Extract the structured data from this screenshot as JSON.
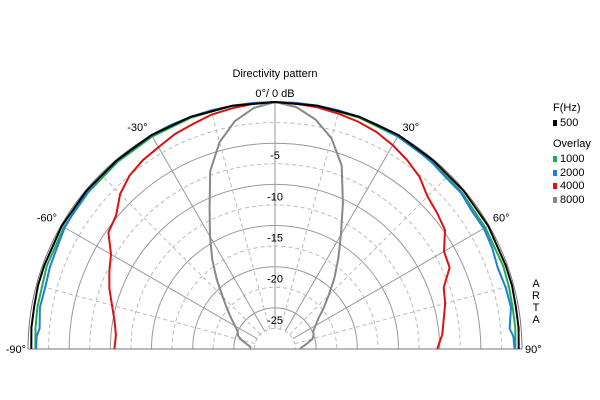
{
  "chart_data": {
    "type": "polar",
    "title": "Directivity pattern",
    "top_label": "0°/ 0 dB",
    "angle_range": [
      -90,
      90
    ],
    "radial_range_db": [
      -30,
      0
    ],
    "grid": true,
    "angle_tick_labels": [
      {
        "angle": -90,
        "label": "-90°"
      },
      {
        "angle": -60,
        "label": "-60°"
      },
      {
        "angle": -30,
        "label": "-30°"
      },
      {
        "angle": 30,
        "label": "30°"
      },
      {
        "angle": 60,
        "label": "60°"
      },
      {
        "angle": 90,
        "label": "90°"
      }
    ],
    "radial_tick_labels": [
      {
        "db": -5,
        "label": "-5"
      },
      {
        "db": -10,
        "label": "-10"
      },
      {
        "db": -15,
        "label": "-15"
      },
      {
        "db": -20,
        "label": "-20"
      },
      {
        "db": -25,
        "label": "-25"
      }
    ],
    "legend": {
      "header": "F(Hz)",
      "overlay_header": "Overlay",
      "watermark": "ARTA",
      "placement": "right"
    },
    "series": [
      {
        "name": "500",
        "color": "#000000",
        "angles": [
          -90,
          -85,
          -80,
          -75,
          -70,
          -60,
          -50,
          -40,
          -30,
          -20,
          -10,
          0,
          10,
          20,
          30,
          40,
          50,
          60,
          70,
          75,
          80,
          85,
          90
        ],
        "db": [
          -0.4,
          -0.3,
          -0.3,
          -0.2,
          -0.2,
          -0.1,
          -0.1,
          -0.1,
          0,
          0,
          0,
          0,
          0,
          0,
          0,
          -0.1,
          -0.1,
          -0.1,
          -0.2,
          -0.2,
          -0.3,
          -0.3,
          -0.4
        ]
      },
      {
        "name": "1000",
        "color": "#22aa55",
        "angles": [
          -90,
          -85,
          -80,
          -75,
          -70,
          -60,
          -50,
          -40,
          -30,
          -20,
          -10,
          0,
          10,
          20,
          30,
          40,
          50,
          60,
          70,
          75,
          80,
          85,
          90
        ],
        "db": [
          -0.9,
          -0.8,
          -0.7,
          -0.7,
          -0.5,
          -0.4,
          -0.4,
          -0.3,
          -0.2,
          -0.1,
          0,
          0,
          0,
          -0.1,
          -0.2,
          -0.3,
          -0.4,
          -0.5,
          -0.5,
          -0.6,
          -0.7,
          -0.7,
          -0.8
        ]
      },
      {
        "name": "2000",
        "color": "#1e7fd6",
        "angles": [
          -90,
          -87,
          -85,
          -80,
          -75,
          -70,
          -65,
          -60,
          -55,
          -50,
          -45,
          -40,
          -35,
          -30,
          -25,
          -20,
          -15,
          -10,
          -5,
          0,
          5,
          10,
          15,
          20,
          25,
          30,
          35,
          40,
          45,
          50,
          55,
          60,
          65,
          70,
          75,
          80,
          85,
          87,
          90
        ],
        "db": [
          -1.0,
          -1.0,
          -1.3,
          -1.0,
          -1.1,
          -0.9,
          -0.8,
          -0.5,
          -0.4,
          -0.3,
          -0.2,
          -0.2,
          -0.1,
          0,
          0,
          0,
          0,
          0,
          0,
          0,
          0,
          0,
          0,
          0,
          -0.1,
          -0.2,
          -0.3,
          -0.4,
          -0.6,
          -0.5,
          -0.8,
          -0.7,
          -0.9,
          -1.2,
          -1.0,
          -0.9,
          -1.4,
          -1.0,
          -0.9
        ]
      },
      {
        "name": "4000",
        "color": "#dd1111",
        "angles": [
          -90,
          -85,
          -80,
          -75,
          -70,
          -65,
          -60,
          -55,
          -50,
          -45,
          -40,
          -35,
          -30,
          -25,
          -20,
          -15,
          -10,
          -5,
          0,
          5,
          10,
          15,
          20,
          25,
          30,
          35,
          40,
          45,
          50,
          55,
          60,
          65,
          70,
          75,
          80,
          85,
          90
        ],
        "db": [
          -10.5,
          -10.6,
          -10.2,
          -9.5,
          -8.6,
          -7.8,
          -7.0,
          -5.3,
          -4.8,
          -3.4,
          -2.5,
          -2.0,
          -1.7,
          -1.2,
          -0.9,
          -0.5,
          -0.3,
          -0.1,
          0,
          -0.1,
          -0.2,
          -0.4,
          -0.6,
          -0.9,
          -1.4,
          -2.0,
          -2.7,
          -3.8,
          -4.3,
          -4.8,
          -6.3,
          -6.6,
          -8.2,
          -8.6,
          -9.2,
          -9.6,
          -10.3
        ]
      },
      {
        "name": "8000",
        "color": "#888888",
        "angles": [
          -90,
          -85,
          -80,
          -75,
          -70,
          -65,
          -60,
          -55,
          -50,
          -45,
          -40,
          -35,
          -30,
          -25,
          -20,
          -15,
          -10,
          -5,
          0,
          5,
          10,
          15,
          20,
          25,
          30,
          35,
          40,
          45,
          50,
          55,
          60,
          65,
          70,
          75,
          80,
          85,
          90
        ],
        "db": [
          -27.0,
          -27.0,
          -26.5,
          -25.8,
          -25.2,
          -25.0,
          -24.4,
          -23.5,
          -22.4,
          -21.0,
          -19.0,
          -16.7,
          -14.2,
          -11.2,
          -7.0,
          -4.0,
          -1.9,
          -0.6,
          0,
          -0.5,
          -1.7,
          -3.5,
          -6.3,
          -10.5,
          -14.0,
          -16.6,
          -18.8,
          -20.8,
          -22.3,
          -23.6,
          -24.3,
          -24.9,
          -25.0,
          -25.3,
          -26.0,
          -26.6,
          -27.0
        ]
      }
    ]
  }
}
